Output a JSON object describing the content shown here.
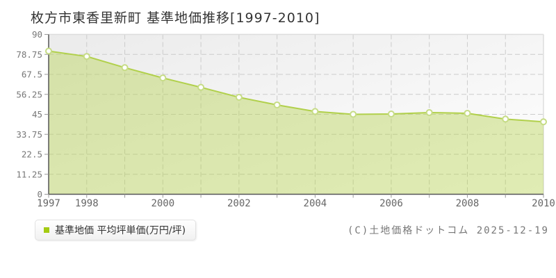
{
  "title": "枚方市東香里新町 基準地価推移[1997-2010]",
  "legend": {
    "label": "基準地価 平均坪単価(万円/坪)",
    "marker_color": "#a4cb12"
  },
  "footer": {
    "copyright": "(C)土地価格ドットコム 2025-12-19"
  },
  "chart_data": {
    "type": "area",
    "title": "枚方市東香里新町 基準地価推移[1997-2010]",
    "series_name": "基準地価 平均坪単価(万円/坪)",
    "x": [
      1997,
      1998,
      1999,
      2000,
      2001,
      2002,
      2003,
      2004,
      2005,
      2006,
      2007,
      2008,
      2009,
      2010
    ],
    "values": [
      80.6,
      77.6,
      71.3,
      65.5,
      60.2,
      54.6,
      50.3,
      46.6,
      45.0,
      45.2,
      46.0,
      45.6,
      42.3,
      40.8
    ],
    "xlabel": "",
    "ylabel": "万円/坪",
    "ylim": [
      0,
      90
    ],
    "yticks": [
      0,
      11.25,
      22.5,
      33.75,
      45,
      56.25,
      67.5,
      78.75,
      90
    ],
    "xtick_labels": [
      1997,
      1998,
      2000,
      2002,
      2004,
      2006,
      2008,
      2010
    ],
    "grid": true,
    "legend_position": "bottom-left",
    "colors": {
      "line": "#b1d04b",
      "fill": "#b5d24c",
      "fill_opacity": 0.42,
      "marker_fill": "#ffffff",
      "marker_stroke": "#c6dc85",
      "grid": "#cccccc",
      "axis": "#555555",
      "plot_border": "#dddddd",
      "tick": "#999999",
      "y_label": "#777777",
      "x_label": "#666666",
      "plot_bg_start": "#ebebeb",
      "plot_bg_end": "#ffffff"
    }
  }
}
